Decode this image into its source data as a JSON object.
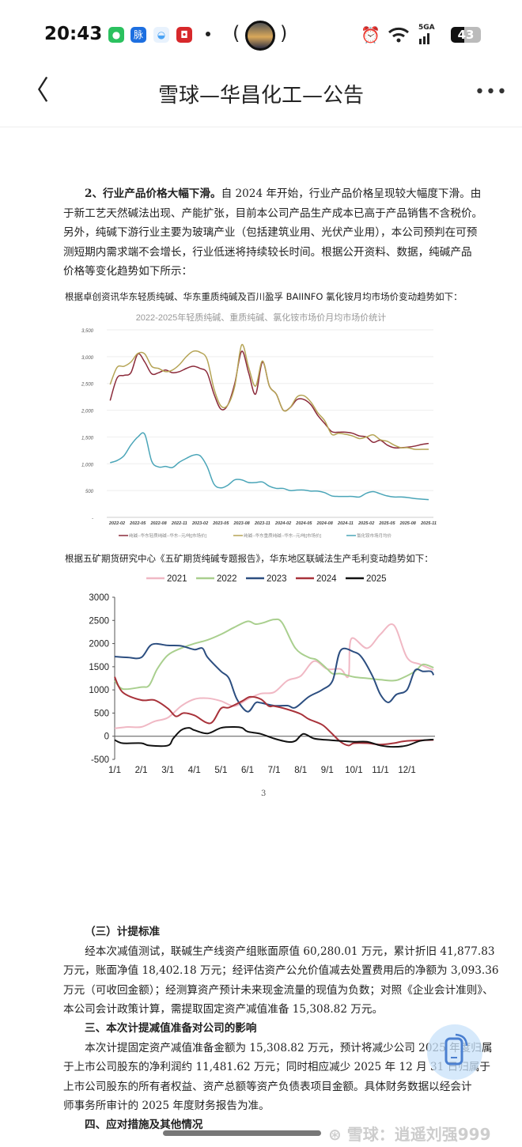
{
  "status_bar": {
    "time": "20:43",
    "network": "5GA",
    "battery": "43",
    "app_icons": [
      {
        "name": "wechat-icon",
        "color": "#2bc15f"
      },
      {
        "name": "maimai-icon",
        "label": "脉",
        "color": "#1d6fe0"
      },
      {
        "name": "browser-icon",
        "color": "#4aa3f5"
      },
      {
        "name": "app-red-icon",
        "color": "#d7282b"
      }
    ]
  },
  "nav": {
    "title": "雪球—华昌化工—公告",
    "back_icon": "chevron-left-icon",
    "more_icon": "more-icon"
  },
  "section2": {
    "lines": [
      {
        "bold": "2、行业产品价格大幅下滑。",
        "text": "自 2024 年开始，行业产品价格呈现较大幅度下滑。由"
      },
      {
        "text": "于新工艺天然碱法出现、产能扩张，目前本公司产品生产成本已高于产品销售不含税价。"
      },
      {
        "text": "另外，纯碱下游行业主要为玻璃产业（包括建筑业用、光伏产业用），本公司预判在可预"
      },
      {
        "text": "测短期内需求端不会增长，行业低迷将持续较长时间。根据公开资料、数据，纯碱产品"
      },
      {
        "text": "价格等变化趋势如下所示："
      }
    ]
  },
  "caption1": "根据卓创资讯华东轻质纯碱、华东重质纯碱及百川盈孚 BAIINFO 氯化铵月均市场价变动趋势如下：",
  "caption2": "根据五矿期货研究中心《五矿期货纯碱专题报告》，华东地区联碱法生产毛利变动趋势如下：",
  "chart_data": [
    {
      "type": "line",
      "title": "2022-2025年轻质纯碱、重质纯碱、氯化铵市场价月均市场价统计",
      "ylim": [
        0,
        3500
      ],
      "yticks": [
        "3,500",
        "3,000",
        "2,500",
        "2,000",
        "1,500",
        "1,000",
        "500",
        "-"
      ],
      "xticks": [
        "2022-02",
        "2022-05",
        "2022-08",
        "2022-11",
        "2023-02",
        "2023-05",
        "2023-08",
        "2023-11",
        "2024-02",
        "2024-05",
        "2024-08",
        "2024-11",
        "2025-02",
        "2025-05",
        "2025-08",
        "2025-11"
      ],
      "grid": true,
      "legend": "bottom",
      "x_start": "2022-01",
      "x_step": "monthly",
      "series": [
        {
          "name": "纯碱--华东轻质纯碱--华东--元/吨[市场价]",
          "color": "#8b2a3a",
          "values": [
            2180,
            2600,
            2650,
            2700,
            3050,
            2900,
            2680,
            2700,
            2750,
            2700,
            2720,
            2780,
            2820,
            2780,
            2700,
            2300,
            2020,
            2100,
            2500,
            3100,
            2700,
            2300,
            2900,
            2450,
            2300,
            2000,
            2050,
            2200,
            2200,
            2100,
            1900,
            1750,
            1600,
            1590,
            1590,
            1570,
            1520,
            1500,
            1400,
            1440,
            1350,
            1300,
            1300,
            1310,
            1330,
            1360,
            1380
          ]
        },
        {
          "name": "纯碱--华东重质纯碱--华东--元/吨[市场价]",
          "color": "#b5a455",
          "values": [
            2480,
            2800,
            2820,
            2900,
            3060,
            3050,
            2820,
            2780,
            2720,
            2750,
            2850,
            3000,
            3100,
            3080,
            2950,
            2400,
            2080,
            2100,
            2450,
            3220,
            2800,
            2450,
            2920,
            2450,
            2300,
            2000,
            2050,
            2250,
            2270,
            2150,
            1950,
            1800,
            1550,
            1570,
            1550,
            1520,
            1470,
            1500,
            1540,
            1450,
            1420,
            1350,
            1300,
            1300,
            1270,
            1270,
            1270
          ]
        },
        {
          "name": "氯化铵市场月均价",
          "color": "#4aa5b8",
          "values": [
            1020,
            1060,
            1150,
            1350,
            1500,
            1550,
            1050,
            940,
            950,
            930,
            1030,
            1100,
            1160,
            1150,
            950,
            620,
            550,
            600,
            700,
            700,
            650,
            650,
            660,
            580,
            540,
            540,
            500,
            510,
            510,
            490,
            490,
            460,
            400,
            390,
            390,
            390,
            380,
            450,
            480,
            440,
            400,
            380,
            380,
            370,
            350,
            340,
            330
          ]
        }
      ]
    },
    {
      "type": "line",
      "ylim": [
        -500,
        3000
      ],
      "yticks": [
        "3000",
        "2500",
        "2000",
        "1500",
        "1000",
        "500",
        "0",
        "-500"
      ],
      "xticks": [
        "1/1",
        "2/1",
        "3/1",
        "4/1",
        "5/1",
        "6/1",
        "7/1",
        "8/1",
        "9/1",
        "10/1",
        "11/1",
        "12/1"
      ],
      "legend": "top",
      "series": [
        {
          "name": "2021",
          "color": "#f0b8c4",
          "points": [
            [
              1,
              170
            ],
            [
              1.5,
              200
            ],
            [
              2,
              200
            ],
            [
              2.5,
              320
            ],
            [
              3,
              400
            ],
            [
              3.5,
              650
            ],
            [
              4,
              800
            ],
            [
              4.5,
              820
            ],
            [
              5,
              760
            ],
            [
              5.5,
              650
            ],
            [
              6,
              800
            ],
            [
              6.5,
              920
            ],
            [
              7,
              950
            ],
            [
              7.5,
              1200
            ],
            [
              8,
              1300
            ],
            [
              8.5,
              1620
            ],
            [
              9,
              1450
            ],
            [
              9.5,
              1450
            ],
            [
              9.8,
              1300
            ],
            [
              9.9,
              2100
            ],
            [
              10.5,
              1900
            ],
            [
              11,
              2200
            ],
            [
              11.5,
              2400
            ],
            [
              12,
              1700
            ],
            [
              12.5,
              1550
            ],
            [
              13,
              1430
            ]
          ]
        },
        {
          "name": "2022",
          "color": "#a9cf8e",
          "points": [
            [
              1,
              1200
            ],
            [
              1.3,
              1020
            ],
            [
              2,
              1060
            ],
            [
              2.3,
              1100
            ],
            [
              2.6,
              1450
            ],
            [
              3,
              1750
            ],
            [
              3.5,
              1900
            ],
            [
              4,
              2000
            ],
            [
              4.5,
              2080
            ],
            [
              5,
              2200
            ],
            [
              5.5,
              2350
            ],
            [
              6,
              2480
            ],
            [
              6.3,
              2420
            ],
            [
              6.6,
              2450
            ],
            [
              7,
              2520
            ],
            [
              7.3,
              2450
            ],
            [
              7.8,
              1900
            ],
            [
              8.3,
              1700
            ],
            [
              8.6,
              1650
            ],
            [
              9,
              1450
            ],
            [
              9.2,
              1350
            ],
            [
              9.5,
              1350
            ],
            [
              10,
              1280
            ],
            [
              10.5,
              1250
            ],
            [
              11,
              1220
            ],
            [
              11.5,
              1200
            ],
            [
              11.8,
              1250
            ],
            [
              12.3,
              1400
            ],
            [
              12.6,
              1550
            ],
            [
              13,
              1480
            ]
          ]
        },
        {
          "name": "2023",
          "color": "#2c4e80",
          "points": [
            [
              1,
              1720
            ],
            [
              1.5,
              1700
            ],
            [
              2,
              1700
            ],
            [
              2.4,
              1980
            ],
            [
              3,
              1960
            ],
            [
              3.5,
              1950
            ],
            [
              4,
              1870
            ],
            [
              4.3,
              1900
            ],
            [
              4.5,
              1700
            ],
            [
              5,
              1400
            ],
            [
              5.3,
              1250
            ],
            [
              5.6,
              800
            ],
            [
              6,
              530
            ],
            [
              6.3,
              720
            ],
            [
              6.5,
              720
            ],
            [
              7,
              660
            ],
            [
              7.5,
              660
            ],
            [
              7.8,
              620
            ],
            [
              8.3,
              850
            ],
            [
              8.8,
              1000
            ],
            [
              9.2,
              1200
            ],
            [
              9.5,
              1850
            ],
            [
              10,
              1820
            ],
            [
              10.3,
              1700
            ],
            [
              10.7,
              1300
            ],
            [
              11,
              900
            ],
            [
              11.3,
              730
            ],
            [
              11.6,
              900
            ],
            [
              12,
              1000
            ],
            [
              12.3,
              1420
            ],
            [
              12.6,
              1400
            ],
            [
              12.9,
              1400
            ],
            [
              13,
              1320
            ]
          ]
        },
        {
          "name": "2024",
          "color": "#a8323a",
          "points": [
            [
              1,
              1280
            ],
            [
              1.3,
              950
            ],
            [
              2,
              780
            ],
            [
              2.5,
              780
            ],
            [
              3,
              600
            ],
            [
              3.3,
              430
            ],
            [
              3.6,
              500
            ],
            [
              4,
              450
            ],
            [
              4.6,
              280
            ],
            [
              5,
              600
            ],
            [
              5.3,
              620
            ],
            [
              5.8,
              760
            ],
            [
              6.1,
              850
            ],
            [
              6.5,
              800
            ],
            [
              6.8,
              650
            ],
            [
              7,
              650
            ],
            [
              7.5,
              580
            ],
            [
              8,
              480
            ],
            [
              8.3,
              370
            ],
            [
              8.8,
              250
            ],
            [
              9.1,
              100
            ],
            [
              9.5,
              -120
            ],
            [
              9.8,
              -200
            ],
            [
              10,
              -150
            ],
            [
              10.5,
              -150
            ],
            [
              11,
              -180
            ],
            [
              11.5,
              -150
            ],
            [
              12,
              -100
            ],
            [
              13,
              -80
            ]
          ]
        },
        {
          "name": "2025",
          "color": "#111111",
          "points": [
            [
              1,
              -80
            ],
            [
              1.3,
              -150
            ],
            [
              2,
              -150
            ],
            [
              2.3,
              -200
            ],
            [
              3,
              -200
            ],
            [
              3.2,
              -50
            ],
            [
              3.5,
              130
            ],
            [
              3.8,
              180
            ],
            [
              4,
              130
            ],
            [
              4.5,
              60
            ],
            [
              5,
              180
            ],
            [
              5.5,
              200
            ],
            [
              5.8,
              180
            ],
            [
              6,
              100
            ],
            [
              6.5,
              50
            ],
            [
              7,
              -50
            ],
            [
              7.5,
              -120
            ],
            [
              7.8,
              -100
            ],
            [
              8.1,
              50
            ],
            [
              8.5,
              -50
            ],
            [
              9,
              -80
            ],
            [
              9.5,
              -100
            ],
            [
              10,
              -120
            ],
            [
              10.5,
              -120
            ],
            [
              11,
              -200
            ],
            [
              11.5,
              -230
            ],
            [
              12,
              -200
            ],
            [
              12.5,
              -100
            ],
            [
              13,
              -70
            ]
          ]
        }
      ]
    }
  ],
  "page_number": "3",
  "section3": {
    "heading": "（三）计提标准",
    "lines": [
      "　　经本次减值测试，联碱生产线资产组账面原值 60,280.01 万元，累计折旧 41,877.83",
      "万元，账面净值 18,402.18 万元；经评估资产公允价值减去处置费用后的净额为 3,093.36",
      "万元（可收回金额）；经测算资产预计未来现金流量的现值为负数；对照《企业会计准则》、",
      "本公司会计政策计算，需提取固定资产减值准备 15,308.82 万元。"
    ]
  },
  "section4": {
    "heading": "三、本次计提减值准备对公司的影响",
    "lines": [
      "　　本次计提固定资产减值准备金额为 15,308.82 万元，预计将减少公司 2025 年度归属",
      "于上市公司股东的净利润约 11,481.62 万元；同时相应减少 2025 年 12 月 31 日归属于",
      "上市公司股东的所有者权益、资产总额等资产负债表项目金额。具体财务数据以经会计",
      "师事务所审计的 2025 年度财务报告为准。"
    ]
  },
  "section5": {
    "heading": "四、应对措施及其他情况"
  },
  "watermark": "雪球：逍遥刘强999",
  "float_button_icon": "phone-rotate-icon"
}
